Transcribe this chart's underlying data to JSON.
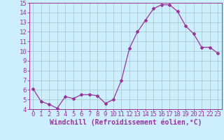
{
  "x": [
    0,
    1,
    2,
    3,
    4,
    5,
    6,
    7,
    8,
    9,
    10,
    11,
    12,
    13,
    14,
    15,
    16,
    17,
    18,
    19,
    20,
    21,
    22,
    23
  ],
  "y": [
    6.1,
    4.8,
    4.5,
    4.1,
    5.3,
    5.1,
    5.5,
    5.5,
    5.4,
    4.6,
    5.0,
    7.0,
    10.3,
    12.0,
    13.2,
    14.4,
    14.8,
    14.8,
    14.1,
    12.6,
    11.8,
    10.4,
    10.4,
    9.8
  ],
  "line_color": "#993399",
  "marker": "D",
  "marker_size": 2,
  "bg_color": "#cceeff",
  "grid_color": "#aacccc",
  "spine_color": "#993399",
  "xlabel": "Windchill (Refroidissement éolien,°C)",
  "xlabel_color": "#993399",
  "tick_color": "#993399",
  "ylim": [
    4,
    15
  ],
  "yticks": [
    4,
    5,
    6,
    7,
    8,
    9,
    10,
    11,
    12,
    13,
    14,
    15
  ],
  "xticks": [
    0,
    1,
    2,
    3,
    4,
    5,
    6,
    7,
    8,
    9,
    10,
    11,
    12,
    13,
    14,
    15,
    16,
    17,
    18,
    19,
    20,
    21,
    22,
    23
  ],
  "font_size": 6.5,
  "xlabel_font_size": 7.0
}
